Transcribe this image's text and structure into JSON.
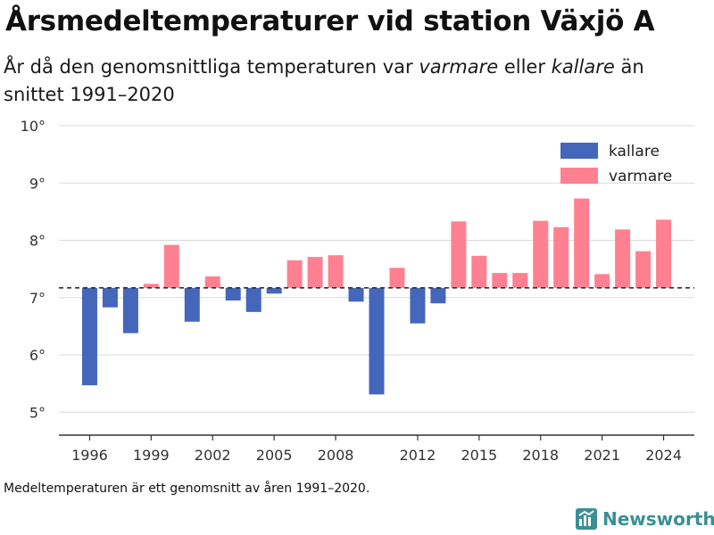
{
  "header": {
    "title": "Årsmedeltemperaturer vid station Växjö A",
    "subtitle_p1": "År då den genomsnittliga temperaturen var ",
    "subtitle_warm": "varmare",
    "subtitle_p2": " eller ",
    "subtitle_cold": "kallare",
    "subtitle_p3": " än snittet 1991–2020"
  },
  "footnote": "Medeltemperaturen är ett genomsnitt av åren 1991–2020.",
  "brand": {
    "name": "Newsworthy",
    "icon": "newsworthy-logo-icon",
    "color": "#3a8f94"
  },
  "chart_data": {
    "type": "bar",
    "baseline": 7.17,
    "ylim": [
      4.6,
      10.0
    ],
    "yticks": [
      5,
      6,
      7,
      8,
      9,
      10
    ],
    "ytick_labels": [
      "5°",
      "6°",
      "7°",
      "8°",
      "9°",
      "10°"
    ],
    "xticks": [
      1996,
      1999,
      2002,
      2005,
      2008,
      2012,
      2015,
      2018,
      2021,
      2024
    ],
    "xlim": [
      1994.5,
      2025.5
    ],
    "grid": true,
    "legend_position": "top-right",
    "colors": {
      "kallare": "#4466bb",
      "varmare": "#ff8090"
    },
    "series": [
      {
        "name": "kallare",
        "years": [
          1996,
          1997,
          1998,
          2001,
          2003,
          2004,
          2005,
          2009,
          2010,
          2012,
          2013
        ],
        "values": [
          5.47,
          6.83,
          6.38,
          6.58,
          6.95,
          6.75,
          7.07,
          6.93,
          5.31,
          6.55,
          6.9
        ]
      },
      {
        "name": "varmare",
        "years": [
          1999,
          2000,
          2002,
          2006,
          2007,
          2008,
          2011,
          2014,
          2015,
          2016,
          2017,
          2018,
          2019,
          2020,
          2021,
          2022,
          2023,
          2024
        ],
        "values": [
          7.24,
          7.92,
          7.37,
          7.65,
          7.71,
          7.74,
          7.52,
          8.33,
          7.73,
          7.43,
          7.43,
          8.34,
          8.23,
          8.73,
          7.41,
          8.19,
          7.81,
          8.36
        ]
      }
    ]
  }
}
